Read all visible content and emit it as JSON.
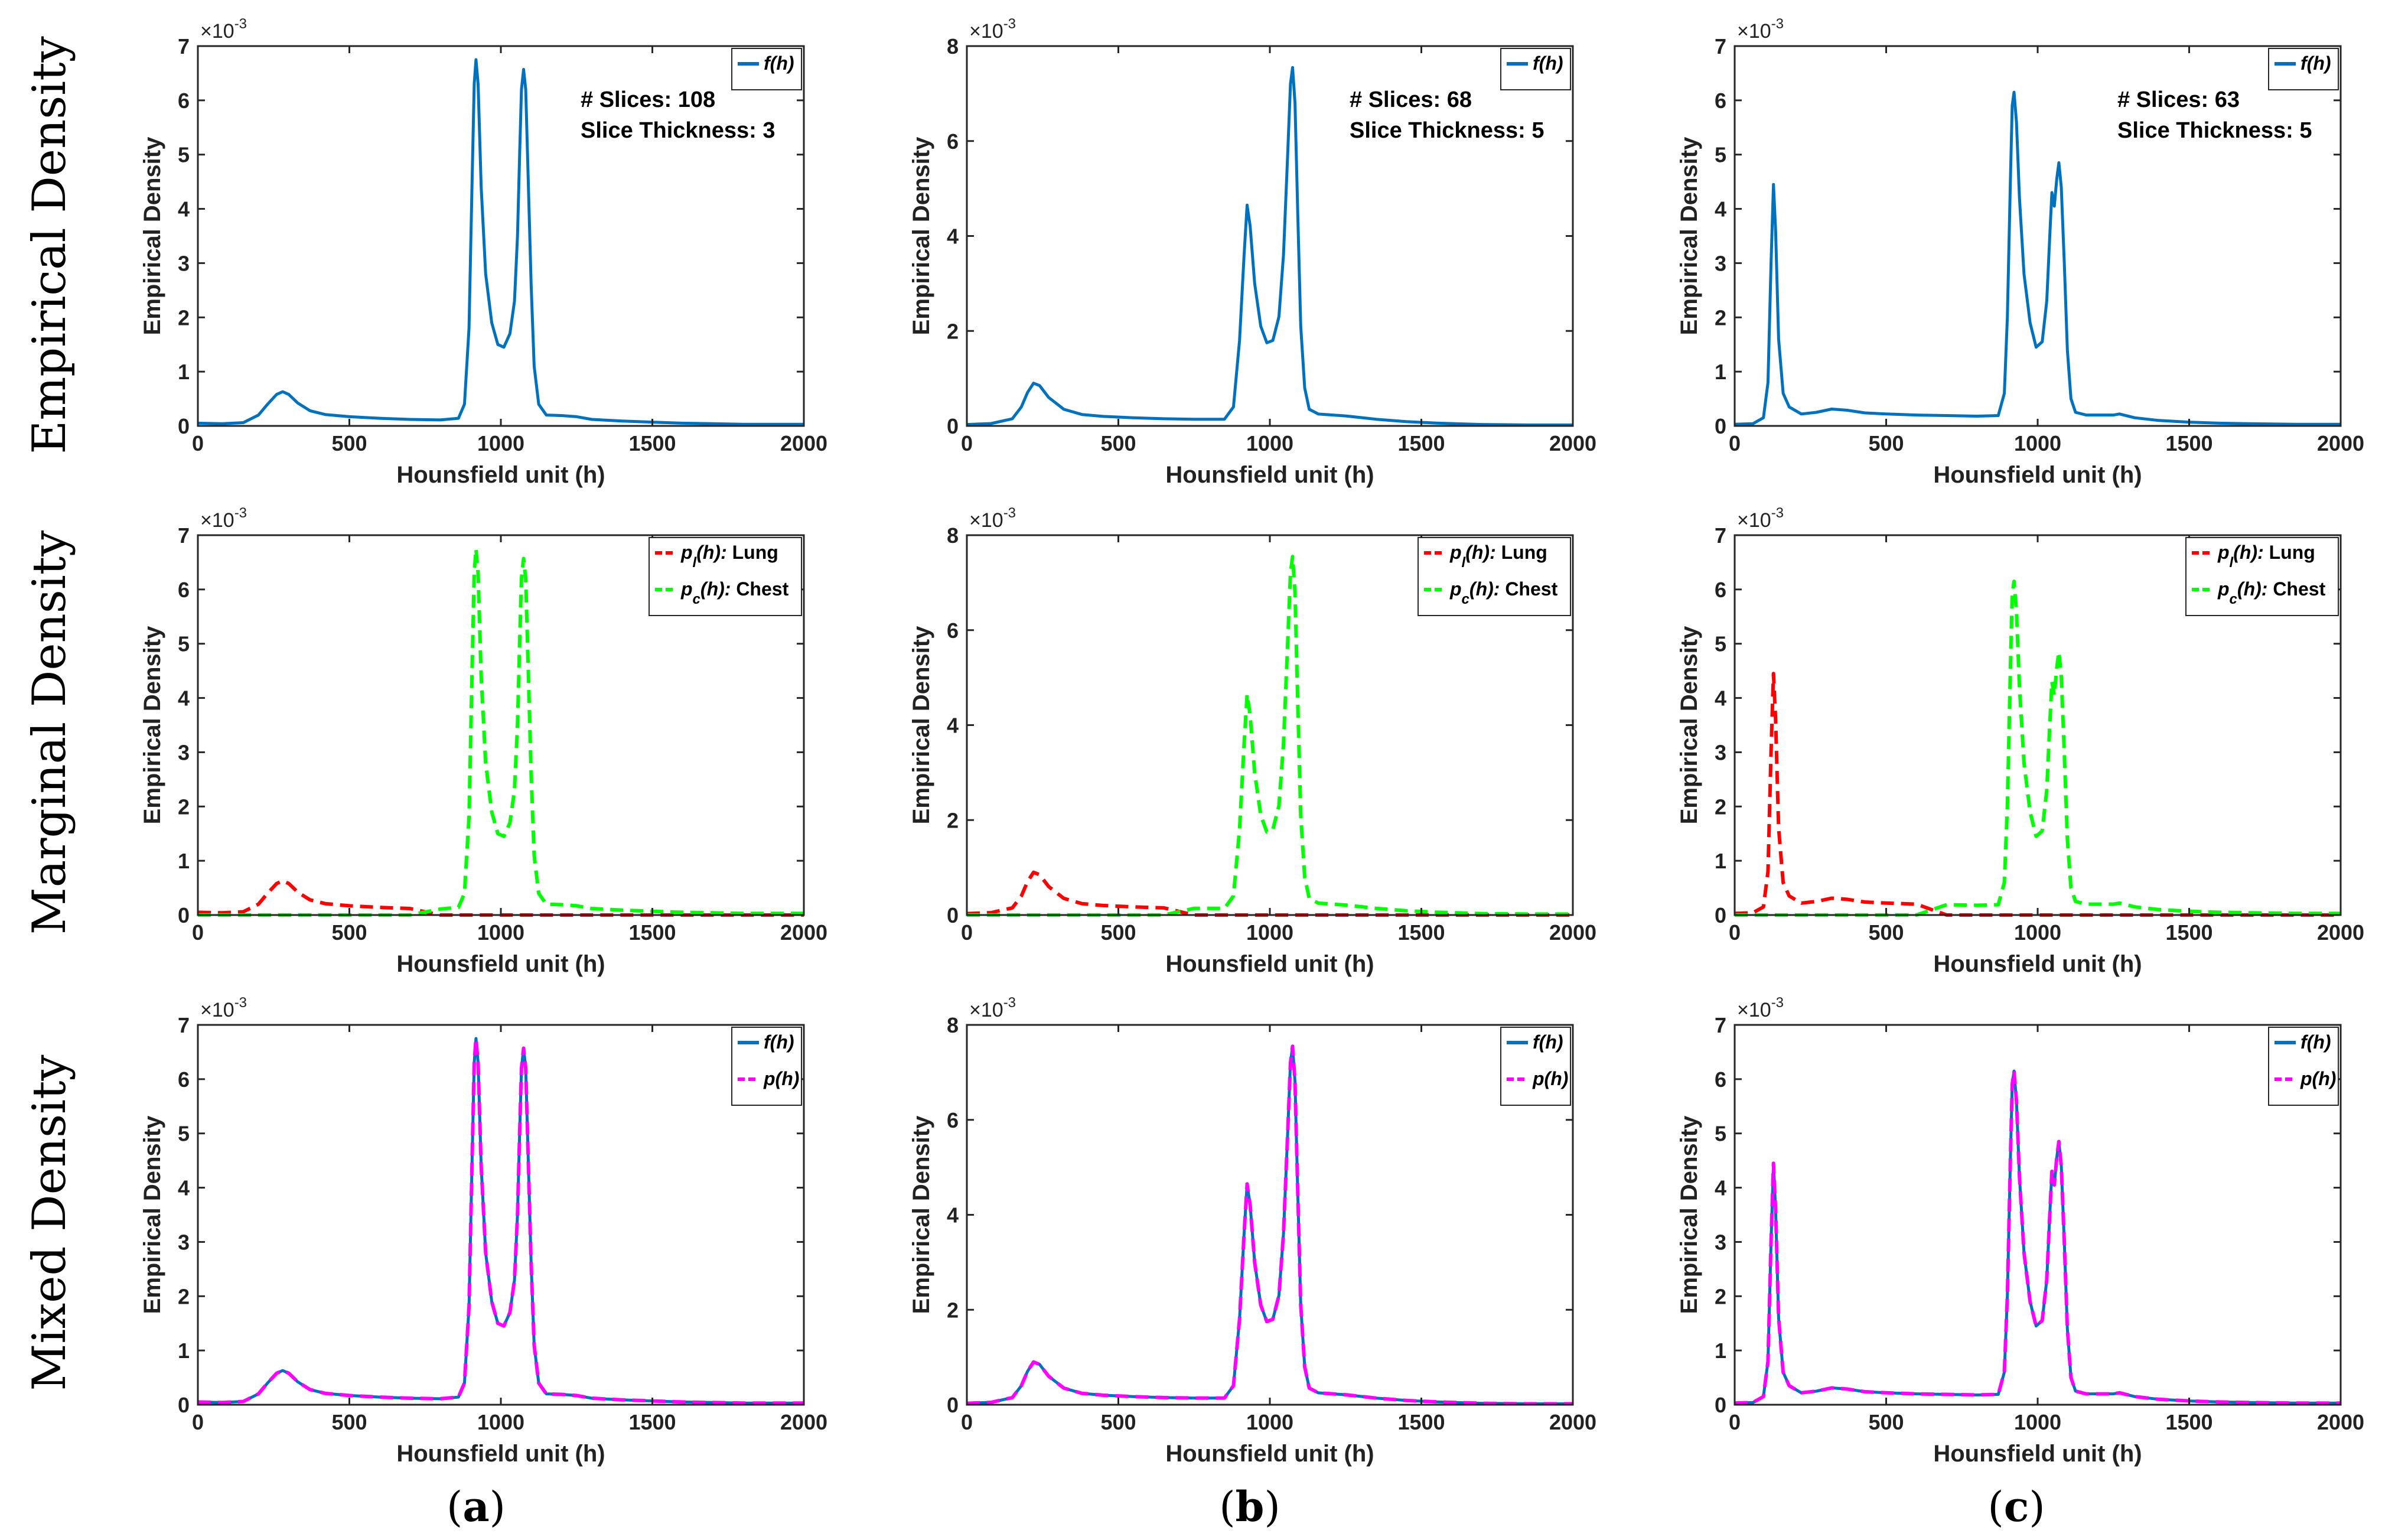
{
  "figure": {
    "row_titles": [
      "Empirical Density",
      "Marginal Density",
      "Mixed Density"
    ],
    "column_labels": [
      {
        "open": "(",
        "letter": "a",
        "close": ")"
      },
      {
        "open": "(",
        "letter": "b",
        "close": ")"
      },
      {
        "open": "(",
        "letter": "c",
        "close": ")"
      }
    ]
  },
  "colors": {
    "f": "#0072BD",
    "lung": "#FF0000",
    "chest": "#00FF00",
    "p": "#FF00FF",
    "axis": "#262626"
  },
  "chart_data": [
    {
      "id": "row1-a",
      "type": "line",
      "row": 0,
      "col": 0,
      "xlabel": "Hounsfield unit (h)",
      "ylabel": "Empirical Density",
      "xlim": [
        0,
        2000
      ],
      "ylim": [
        0,
        7
      ],
      "y_scale_exponent": "×10^-3",
      "xticks": [
        0,
        500,
        1000,
        1500,
        2000
      ],
      "yticks": [
        0,
        1,
        2,
        3,
        4,
        5,
        6,
        7
      ],
      "annotation": [
        "# Slices: 108",
        "Slice Thickness: 3"
      ],
      "legend": [
        {
          "label": "f(h)",
          "series": "f"
        }
      ],
      "series": [
        {
          "name": "f(h)",
          "key": "f",
          "style": "solid",
          "profile": "A"
        }
      ]
    },
    {
      "id": "row1-b",
      "type": "line",
      "row": 0,
      "col": 1,
      "xlabel": "Hounsfield unit (h)",
      "ylabel": "Empirical Density",
      "xlim": [
        0,
        2000
      ],
      "ylim": [
        0,
        8
      ],
      "y_scale_exponent": "×10^-3",
      "xticks": [
        0,
        500,
        1000,
        1500,
        2000
      ],
      "yticks": [
        0,
        2,
        4,
        6,
        8
      ],
      "annotation": [
        "# Slices: 68",
        "Slice Thickness: 5"
      ],
      "legend": [
        {
          "label": "f(h)",
          "series": "f"
        }
      ],
      "series": [
        {
          "name": "f(h)",
          "key": "f",
          "style": "solid",
          "profile": "B"
        }
      ]
    },
    {
      "id": "row1-c",
      "type": "line",
      "row": 0,
      "col": 2,
      "xlabel": "Hounsfield unit (h)",
      "ylabel": "Empirical Density",
      "xlim": [
        0,
        2000
      ],
      "ylim": [
        0,
        7
      ],
      "y_scale_exponent": "×10^-3",
      "xticks": [
        0,
        500,
        1000,
        1500,
        2000
      ],
      "yticks": [
        0,
        1,
        2,
        3,
        4,
        5,
        6,
        7
      ],
      "annotation": [
        "# Slices: 63",
        "Slice Thickness: 5"
      ],
      "legend": [
        {
          "label": "f(h)",
          "series": "f"
        }
      ],
      "series": [
        {
          "name": "f(h)",
          "key": "f",
          "style": "solid",
          "profile": "C"
        }
      ]
    },
    {
      "id": "row2-a",
      "type": "line",
      "row": 1,
      "col": 0,
      "xlabel": "Hounsfield unit (h)",
      "ylabel": "Empirical Density",
      "xlim": [
        0,
        2000
      ],
      "ylim": [
        0,
        7
      ],
      "y_scale_exponent": "×10^-3",
      "xticks": [
        0,
        500,
        1000,
        1500,
        2000
      ],
      "yticks": [
        0,
        1,
        2,
        3,
        4,
        5,
        6,
        7
      ],
      "legend": [
        {
          "label": "p_l(h): Lung",
          "series": "lung"
        },
        {
          "label": "p_c(h): Chest",
          "series": "chest"
        }
      ],
      "series": [
        {
          "name": "p_l(h): Lung",
          "key": "lung",
          "style": "dashed",
          "profile": "A",
          "part": "lung"
        },
        {
          "name": "p_c(h): Chest",
          "key": "chest",
          "style": "dashed",
          "profile": "A",
          "part": "chest"
        }
      ]
    },
    {
      "id": "row2-b",
      "type": "line",
      "row": 1,
      "col": 1,
      "xlabel": "Hounsfield unit (h)",
      "ylabel": "Empirical Density",
      "xlim": [
        0,
        2000
      ],
      "ylim": [
        0,
        8
      ],
      "y_scale_exponent": "×10^-3",
      "xticks": [
        0,
        500,
        1000,
        1500,
        2000
      ],
      "yticks": [
        0,
        2,
        4,
        6,
        8
      ],
      "legend": [
        {
          "label": "p_l(h): Lung",
          "series": "lung"
        },
        {
          "label": "p_c(h): Chest",
          "series": "chest"
        }
      ],
      "series": [
        {
          "name": "p_l(h): Lung",
          "key": "lung",
          "style": "dashed",
          "profile": "B",
          "part": "lung"
        },
        {
          "name": "p_c(h): Chest",
          "key": "chest",
          "style": "dashed",
          "profile": "B",
          "part": "chest"
        }
      ]
    },
    {
      "id": "row2-c",
      "type": "line",
      "row": 1,
      "col": 2,
      "xlabel": "Hounsfield unit (h)",
      "ylabel": "Empirical Density",
      "xlim": [
        0,
        2000
      ],
      "ylim": [
        0,
        7
      ],
      "y_scale_exponent": "×10^-3",
      "xticks": [
        0,
        500,
        1000,
        1500,
        2000
      ],
      "yticks": [
        0,
        1,
        2,
        3,
        4,
        5,
        6,
        7
      ],
      "legend": [
        {
          "label": "p_l(h): Lung",
          "series": "lung"
        },
        {
          "label": "p_c(h): Chest",
          "series": "chest"
        }
      ],
      "series": [
        {
          "name": "p_l(h): Lung",
          "key": "lung",
          "style": "dashed",
          "profile": "C",
          "part": "lung"
        },
        {
          "name": "p_c(h): Chest",
          "key": "chest",
          "style": "dashed",
          "profile": "C",
          "part": "chest"
        }
      ]
    },
    {
      "id": "row3-a",
      "type": "line",
      "row": 2,
      "col": 0,
      "xlabel": "Hounsfield unit (h)",
      "ylabel": "Empirical Density",
      "xlim": [
        0,
        2000
      ],
      "ylim": [
        0,
        7
      ],
      "y_scale_exponent": "×10^-3",
      "xticks": [
        0,
        500,
        1000,
        1500,
        2000
      ],
      "yticks": [
        0,
        1,
        2,
        3,
        4,
        5,
        6,
        7
      ],
      "legend": [
        {
          "label": "f(h)",
          "series": "f"
        },
        {
          "label": "p(h)",
          "series": "p"
        }
      ],
      "series": [
        {
          "name": "f(h)",
          "key": "f",
          "style": "solid",
          "profile": "A"
        },
        {
          "name": "p(h)",
          "key": "p",
          "style": "dashed",
          "profile": "A"
        }
      ]
    },
    {
      "id": "row3-b",
      "type": "line",
      "row": 2,
      "col": 1,
      "xlabel": "Hounsfield unit (h)",
      "ylabel": "Empirical Density",
      "xlim": [
        0,
        2000
      ],
      "ylim": [
        0,
        8
      ],
      "y_scale_exponent": "×10^-3",
      "xticks": [
        0,
        500,
        1000,
        1500,
        2000
      ],
      "yticks": [
        0,
        2,
        4,
        6,
        8
      ],
      "legend": [
        {
          "label": "f(h)",
          "series": "f"
        },
        {
          "label": "p(h)",
          "series": "p"
        }
      ],
      "series": [
        {
          "name": "f(h)",
          "key": "f",
          "style": "solid",
          "profile": "B"
        },
        {
          "name": "p(h)",
          "key": "p",
          "style": "dashed",
          "profile": "B"
        }
      ]
    },
    {
      "id": "row3-c",
      "type": "line",
      "row": 2,
      "col": 2,
      "xlabel": "Hounsfield unit (h)",
      "ylabel": "Empirical Density",
      "xlim": [
        0,
        2000
      ],
      "ylim": [
        0,
        7
      ],
      "y_scale_exponent": "×10^-3",
      "xticks": [
        0,
        500,
        1000,
        1500,
        2000
      ],
      "yticks": [
        0,
        1,
        2,
        3,
        4,
        5,
        6,
        7
      ],
      "legend": [
        {
          "label": "f(h)",
          "series": "f"
        },
        {
          "label": "p(h)",
          "series": "p"
        }
      ],
      "series": [
        {
          "name": "f(h)",
          "key": "f",
          "style": "solid",
          "profile": "C"
        },
        {
          "name": "p(h)",
          "key": "p",
          "style": "dashed",
          "profile": "C"
        }
      ]
    }
  ],
  "profiles": {
    "A": {
      "split": 700,
      "points": [
        [
          0,
          0.05
        ],
        [
          80,
          0.04
        ],
        [
          150,
          0.06
        ],
        [
          200,
          0.2
        ],
        [
          230,
          0.4
        ],
        [
          260,
          0.58
        ],
        [
          280,
          0.63
        ],
        [
          300,
          0.58
        ],
        [
          330,
          0.42
        ],
        [
          370,
          0.28
        ],
        [
          420,
          0.21
        ],
        [
          500,
          0.17
        ],
        [
          600,
          0.14
        ],
        [
          700,
          0.12
        ],
        [
          800,
          0.11
        ],
        [
          860,
          0.14
        ],
        [
          880,
          0.4
        ],
        [
          895,
          1.8
        ],
        [
          905,
          4.5
        ],
        [
          912,
          6.3
        ],
        [
          918,
          6.75
        ],
        [
          925,
          6.3
        ],
        [
          935,
          4.4
        ],
        [
          950,
          2.8
        ],
        [
          970,
          1.9
        ],
        [
          990,
          1.5
        ],
        [
          1010,
          1.45
        ],
        [
          1030,
          1.7
        ],
        [
          1045,
          2.3
        ],
        [
          1055,
          3.5
        ],
        [
          1062,
          5.0
        ],
        [
          1068,
          6.2
        ],
        [
          1075,
          6.57
        ],
        [
          1082,
          6.2
        ],
        [
          1090,
          4.6
        ],
        [
          1100,
          2.6
        ],
        [
          1110,
          1.1
        ],
        [
          1125,
          0.4
        ],
        [
          1150,
          0.2
        ],
        [
          1200,
          0.19
        ],
        [
          1250,
          0.17
        ],
        [
          1300,
          0.12
        ],
        [
          1400,
          0.09
        ],
        [
          1500,
          0.07
        ],
        [
          1600,
          0.05
        ],
        [
          1700,
          0.04
        ],
        [
          1800,
          0.03
        ],
        [
          1900,
          0.03
        ],
        [
          2000,
          0.03
        ]
      ]
    },
    "B": {
      "split": 650,
      "points": [
        [
          0,
          0.03
        ],
        [
          80,
          0.05
        ],
        [
          150,
          0.15
        ],
        [
          180,
          0.4
        ],
        [
          200,
          0.7
        ],
        [
          220,
          0.9
        ],
        [
          240,
          0.85
        ],
        [
          270,
          0.6
        ],
        [
          320,
          0.35
        ],
        [
          380,
          0.24
        ],
        [
          450,
          0.2
        ],
        [
          550,
          0.17
        ],
        [
          650,
          0.15
        ],
        [
          750,
          0.14
        ],
        [
          850,
          0.14
        ],
        [
          880,
          0.4
        ],
        [
          900,
          1.8
        ],
        [
          915,
          3.6
        ],
        [
          925,
          4.65
        ],
        [
          935,
          4.2
        ],
        [
          950,
          3.0
        ],
        [
          970,
          2.1
        ],
        [
          990,
          1.75
        ],
        [
          1010,
          1.8
        ],
        [
          1030,
          2.3
        ],
        [
          1045,
          3.6
        ],
        [
          1058,
          5.6
        ],
        [
          1068,
          7.2
        ],
        [
          1075,
          7.55
        ],
        [
          1083,
          6.8
        ],
        [
          1092,
          4.5
        ],
        [
          1102,
          2.1
        ],
        [
          1115,
          0.8
        ],
        [
          1130,
          0.35
        ],
        [
          1160,
          0.25
        ],
        [
          1250,
          0.21
        ],
        [
          1350,
          0.14
        ],
        [
          1450,
          0.09
        ],
        [
          1550,
          0.06
        ],
        [
          1700,
          0.03
        ],
        [
          1850,
          0.02
        ],
        [
          2000,
          0.02
        ]
      ]
    },
    "C": {
      "split": 600,
      "points": [
        [
          0,
          0.03
        ],
        [
          60,
          0.04
        ],
        [
          95,
          0.15
        ],
        [
          110,
          0.8
        ],
        [
          120,
          3.0
        ],
        [
          128,
          4.45
        ],
        [
          135,
          3.6
        ],
        [
          145,
          1.6
        ],
        [
          160,
          0.6
        ],
        [
          180,
          0.35
        ],
        [
          220,
          0.22
        ],
        [
          270,
          0.25
        ],
        [
          320,
          0.31
        ],
        [
          370,
          0.29
        ],
        [
          430,
          0.24
        ],
        [
          500,
          0.22
        ],
        [
          600,
          0.2
        ],
        [
          700,
          0.19
        ],
        [
          800,
          0.18
        ],
        [
          870,
          0.19
        ],
        [
          890,
          0.6
        ],
        [
          900,
          2.0
        ],
        [
          910,
          4.5
        ],
        [
          916,
          5.9
        ],
        [
          922,
          6.15
        ],
        [
          930,
          5.6
        ],
        [
          940,
          4.2
        ],
        [
          955,
          2.8
        ],
        [
          975,
          1.9
        ],
        [
          995,
          1.45
        ],
        [
          1015,
          1.55
        ],
        [
          1030,
          2.3
        ],
        [
          1040,
          3.5
        ],
        [
          1047,
          4.3
        ],
        [
          1055,
          4.05
        ],
        [
          1063,
          4.55
        ],
        [
          1070,
          4.85
        ],
        [
          1078,
          4.4
        ],
        [
          1088,
          3.0
        ],
        [
          1098,
          1.4
        ],
        [
          1110,
          0.5
        ],
        [
          1125,
          0.25
        ],
        [
          1160,
          0.2
        ],
        [
          1250,
          0.2
        ],
        [
          1270,
          0.22
        ],
        [
          1320,
          0.15
        ],
        [
          1400,
          0.1
        ],
        [
          1500,
          0.07
        ],
        [
          1600,
          0.05
        ],
        [
          1700,
          0.04
        ],
        [
          1850,
          0.03
        ],
        [
          2000,
          0.03
        ]
      ]
    }
  }
}
